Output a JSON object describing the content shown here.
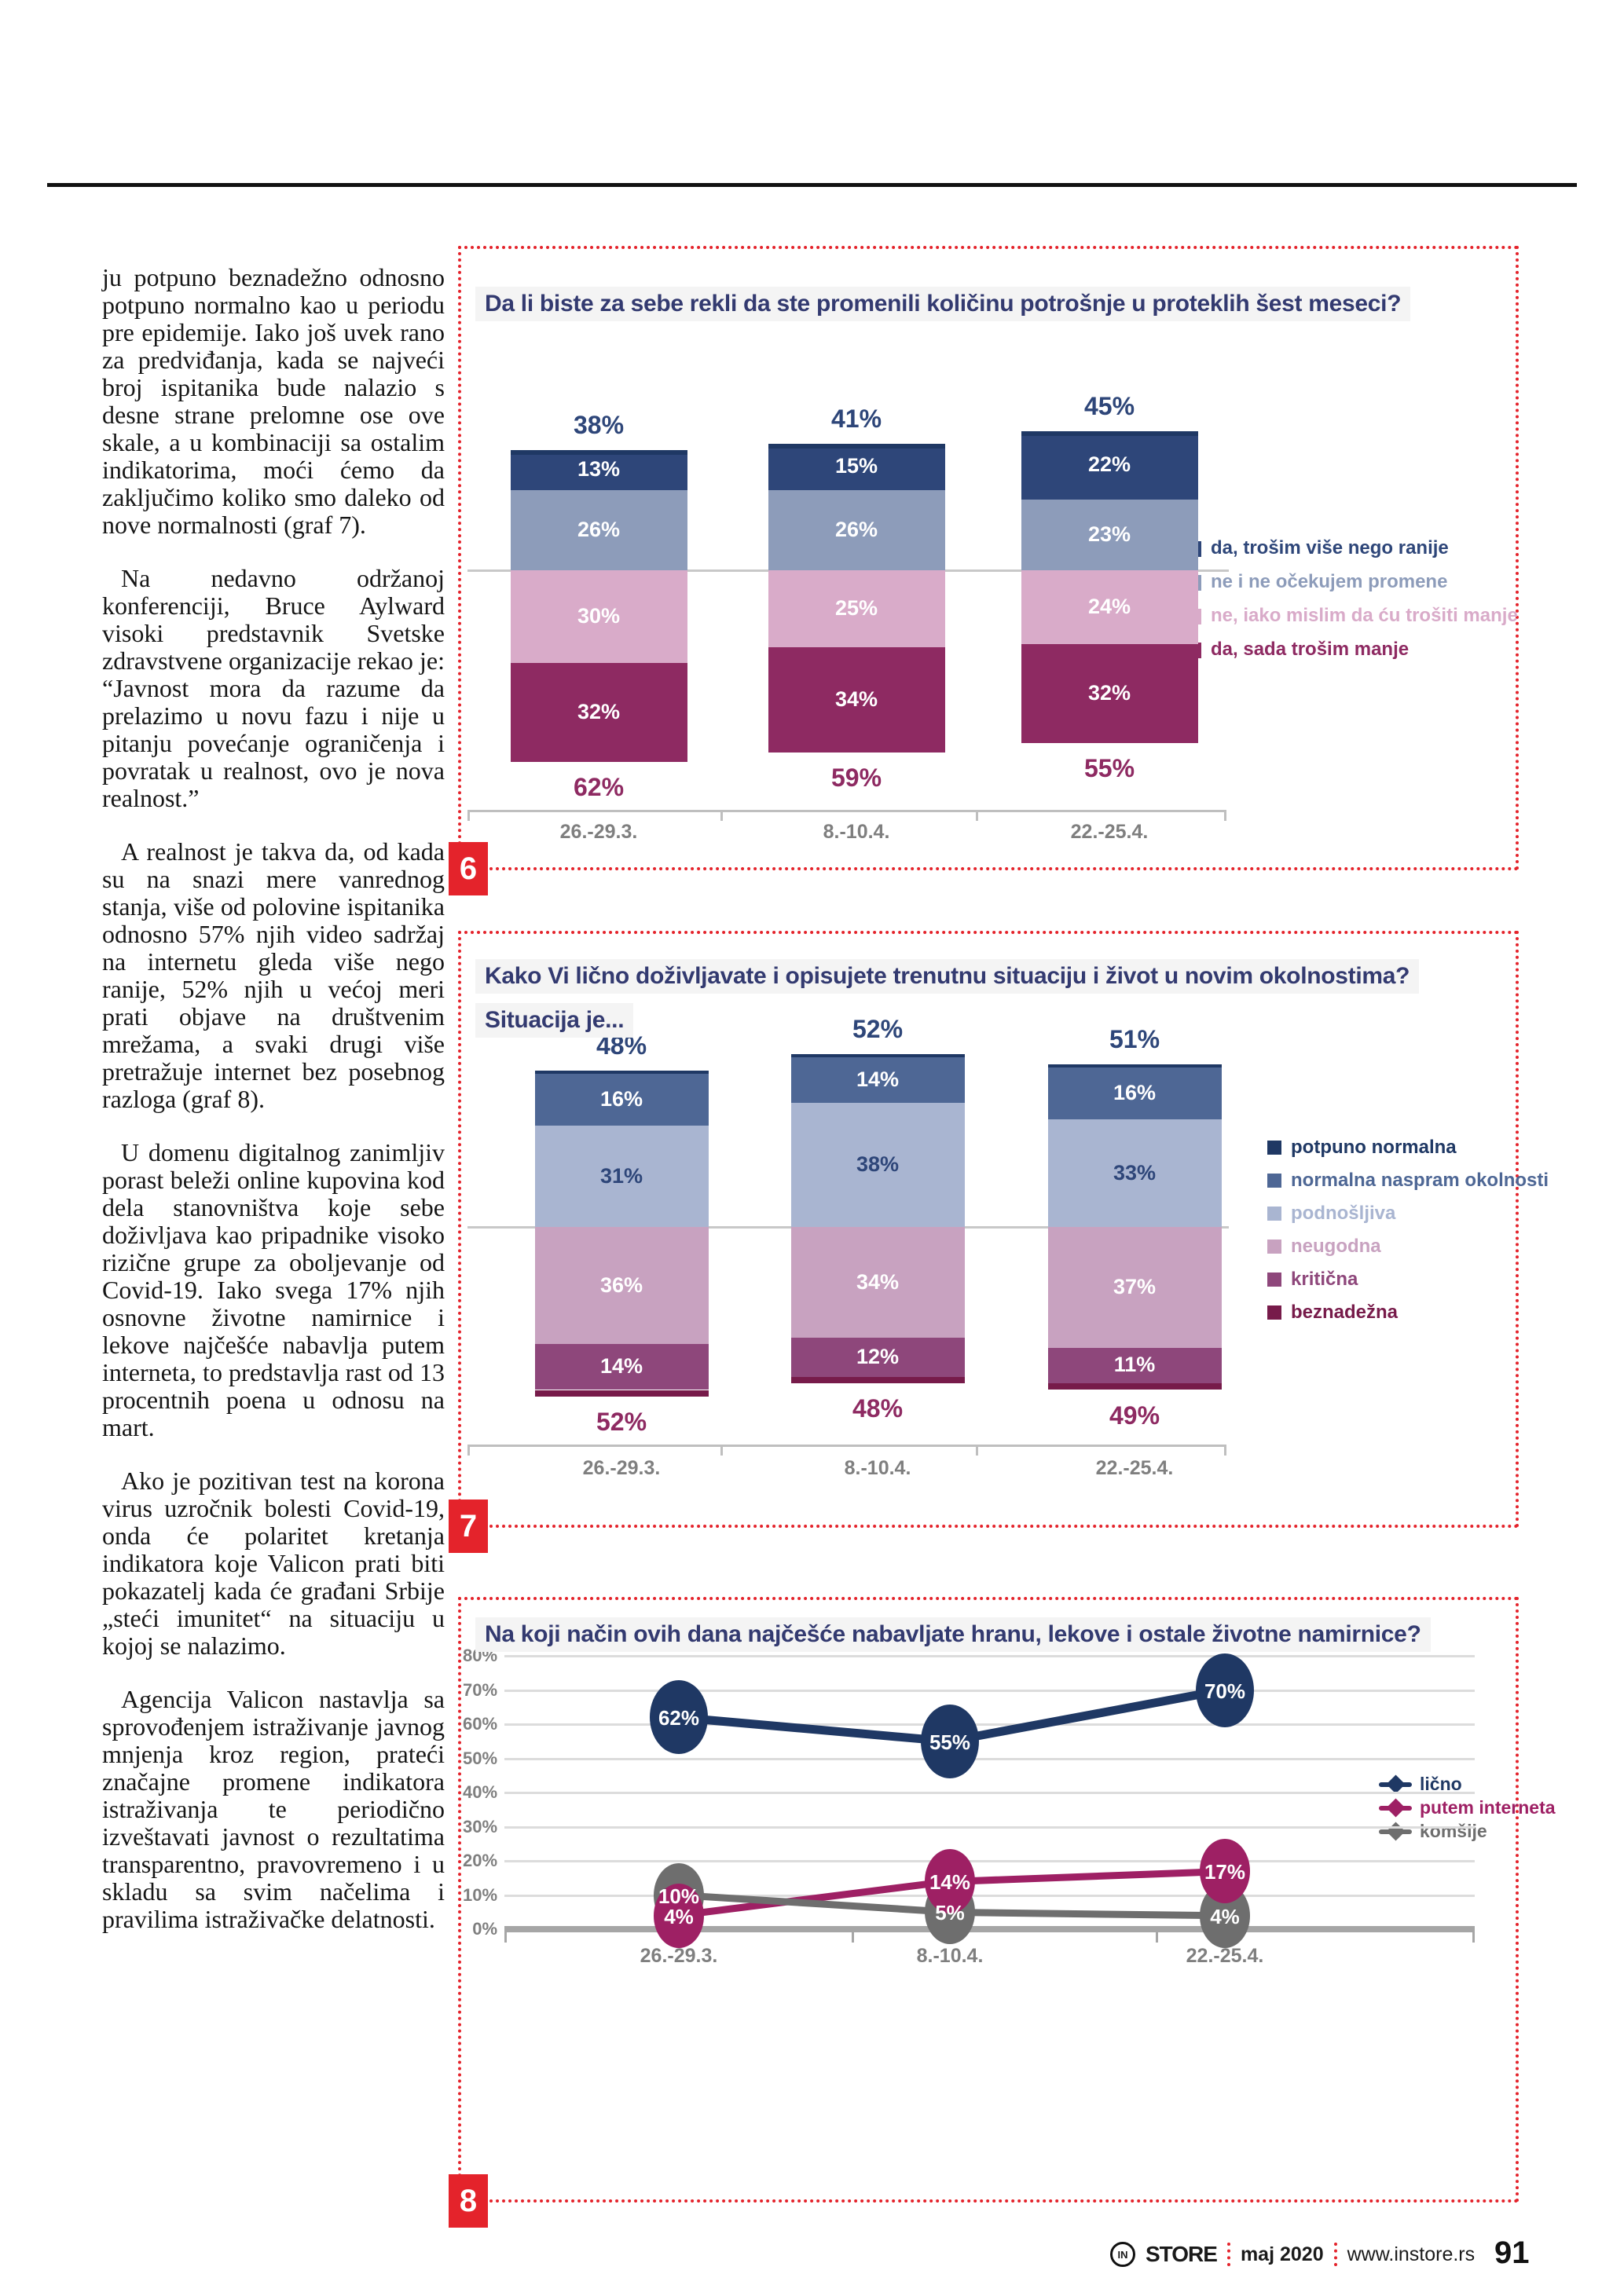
{
  "article": {
    "paragraphs": [
      "ju potpuno beznadežno odnosno potpuno normalno kao u periodu pre epidemije. Iako još uvek rano za predviđanja, kada se najveći broj ispitanika bude nalazio s desne strane prelomne ose ove skale, a u kombinaciji sa ostalim indikatorima, moći ćemo da zaključimo koliko smo daleko od nove normalnosti (graf 7).",
      "Na nedavno održanoj konferenciji, Bruce Aylward visoki predstavnik Svetske zdravstvene organizacije rekao je: “Javnost mora da razume da prelazimo u novu fazu i nije u pitanju povećanje ograničenja i povratak u realnost, ovo je nova realnost.”",
      "A realnost je takva da, od kada su na snazi mere vanrednog stanja, više od polovine ispitanika odnosno 57% njih video sadržaj na internetu gleda više nego ranije, 52% njih u većoj meri prati objave na društvenim mrežama, a svaki drugi više pretražuje internet bez posebnog razloga (graf 8).",
      "U domenu digitalnog zanimljiv porast beleži online kupovina kod dela stanovništva koje sebe doživljava kao pripadnike visoko rizične grupe za oboljevanje od Covid-19. Iako svega 17% njih osnovne životne namirnice i lekove najčešće nabavlja putem interneta, to predstavlja rast od 13 procentnih poena u odnosu na mart.",
      "Ako je pozitivan test na korona virus uzročnik bolesti Covid-19, onda će polaritet kretanja indikatora koje Valicon prati biti pokazatelj kada će građani Srbije „steći imunitet“ na situaciju u kojoj se nalazimo.",
      "Agencija Valicon nastavlja sa sprovođenjem istraživanje javnog mnjenja kroz region, prateći značajne promene indikatora istraživanja te periodično izveštavati javnost o rezultatima transparentno, pravovremeno i u skladu sa svim načelima i pravilima istraživačke delatnosti."
    ]
  },
  "chart_data": [
    {
      "graf_number": "6",
      "type": "bar",
      "title": "Da li biste za sebe rekli da ste promenili količinu potrošnje u proteklih šest meseci?",
      "categories": [
        "26.-29.3.",
        "8.-10.4.",
        "22.-25.4."
      ],
      "series": [
        {
          "name": "da, trošim više nego ranije",
          "color": "#2e4679",
          "values": [
            13,
            15,
            22
          ]
        },
        {
          "name": "ne i ne očekujem promene",
          "color": "#8d9cba",
          "values": [
            26,
            26,
            23
          ]
        },
        {
          "name": "ne, iako mislim da ću trošiti manje",
          "color": "#d9abc9",
          "values": [
            30,
            25,
            24
          ]
        },
        {
          "name": "da, sada trošim manje",
          "color": "#8e2a62",
          "values": [
            32,
            34,
            32
          ]
        }
      ],
      "totals_top": [
        "38%",
        "41%",
        "45%"
      ],
      "totals_bottom": [
        "62%",
        "59%",
        "55%"
      ],
      "legend_position": "right",
      "ylim": [
        0,
        100
      ]
    },
    {
      "graf_number": "7",
      "type": "bar",
      "title": "Kako Vi lično doživljavate i opisujete trenutnu situaciju i život u novim okolnostima?",
      "subtitle": "Situacija je...",
      "categories": [
        "26.-29.3.",
        "8.-10.4.",
        "22.-25.4."
      ],
      "series": [
        {
          "name": "potpuno normalna",
          "color": "#1f3864",
          "values": [
            1,
            1,
            1
          ]
        },
        {
          "name": "normalna naspram okolnosti",
          "color": "#4e6795",
          "values": [
            16,
            14,
            16
          ]
        },
        {
          "name": "podnošljiva",
          "color": "#a9b5d1",
          "values": [
            31,
            38,
            33
          ]
        },
        {
          "name": "neugodna",
          "color": "#c8a2c0",
          "values": [
            36,
            34,
            37
          ]
        },
        {
          "name": "kritična",
          "color": "#8e477b",
          "values": [
            14,
            12,
            11
          ]
        },
        {
          "name": "beznadežna",
          "color": "#771b4a",
          "values": [
            2,
            2,
            2
          ]
        }
      ],
      "totals_top": [
        "48%",
        "52%",
        "51%"
      ],
      "totals_bottom": [
        "52%",
        "48%",
        "49%"
      ],
      "legend_position": "right",
      "ylim": [
        0,
        100
      ]
    },
    {
      "graf_number": "8",
      "type": "line",
      "title": "Na koji način ovih dana najčešće nabavljate hranu, lekove i ostale životne namirnice?",
      "categories": [
        "26.-29.3.",
        "8.-10.4.",
        "22.-25.4."
      ],
      "yticks": [
        "80%",
        "70%",
        "60%",
        "50%",
        "40%",
        "30%",
        "20%",
        "10%",
        "0%"
      ],
      "ylim": [
        0,
        80
      ],
      "grid": "on",
      "legend_position": "right",
      "series": [
        {
          "name": "lično",
          "color": "#1f3864",
          "values": [
            62,
            55,
            70
          ]
        },
        {
          "name": "putem interneta",
          "color": "#9e2064",
          "values": [
            4,
            14,
            17
          ]
        },
        {
          "name": "komšije",
          "color": "#6e6e6e",
          "values": [
            10,
            5,
            4
          ]
        }
      ]
    }
  ],
  "footer": {
    "brand_prefix": "IN",
    "brand": "STORE",
    "issue": "maj 2020",
    "website": "www.instore.rs",
    "page_number": "91"
  },
  "colors": {
    "accent_red": "#e4232b",
    "title_navy": "#333a70",
    "total_top_navy": "#2e4679",
    "total_bottom_magenta": "#8e2a62",
    "axis_gray": "#7f7f7f"
  }
}
